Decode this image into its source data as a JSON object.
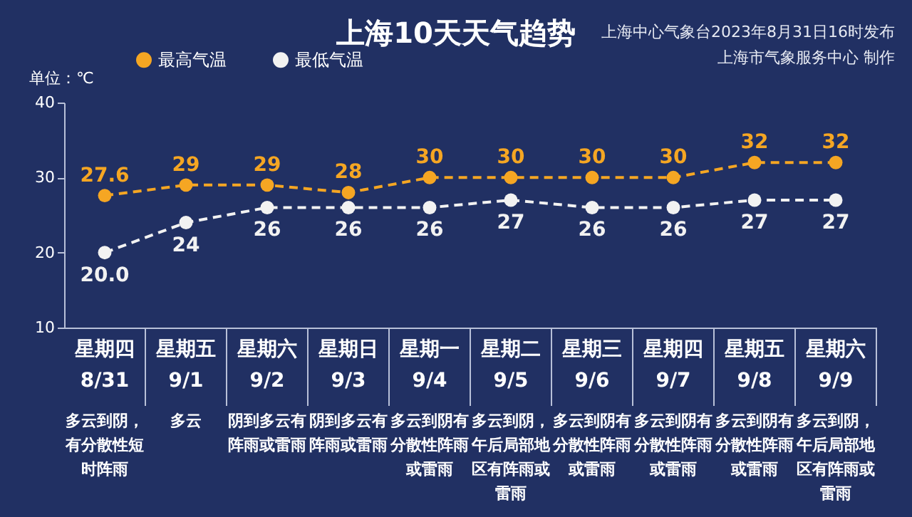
{
  "chart_data": {
    "type": "line",
    "title": "上海10天天气趋势",
    "ylabel": "单位：℃",
    "categories": [
      "星期四\n8/31",
      "星期五\n9/1",
      "星期六\n9/2",
      "星期日\n9/3",
      "星期一\n9/4",
      "星期二\n9/5",
      "星期三\n9/6",
      "星期四\n9/7",
      "星期五\n9/8",
      "星期六\n9/9"
    ],
    "series": [
      {
        "name": "最高气温",
        "color": "#f5a623",
        "values": [
          27.6,
          29,
          29,
          28,
          30,
          30,
          30,
          30,
          32,
          32
        ],
        "value_labels": [
          "27.6",
          "29",
          "29",
          "28",
          "30",
          "30",
          "30",
          "30",
          "32",
          "32"
        ]
      },
      {
        "name": "最低气温",
        "color": "#f2f2f2",
        "values": [
          20.0,
          24,
          26,
          26,
          26,
          27,
          26,
          26,
          27,
          27
        ],
        "value_labels": [
          "20.0",
          "24",
          "26",
          "26",
          "26",
          "27",
          "26",
          "26",
          "27",
          "27"
        ]
      }
    ],
    "ylim": [
      10,
      40
    ],
    "yticks": [
      10,
      20,
      30,
      40
    ],
    "marker": "circle",
    "line_style": "dashed",
    "legend": "top left",
    "annotations": [
      "上海中心气象台2023年8月31日16时发布",
      "上海市气象服务中心 制作",
      "多云到阴，有分散性短时阵雨",
      "多云",
      "阴到多云有阵雨或雷雨",
      "阴到多云有阵雨或雷雨",
      "多云到阴有分散性阵雨或雷雨",
      "多云到阴，午后局部地区有阵雨或雷雨",
      "多云到阴有分散性阵雨或雷雨",
      "多云到阴有分散性阵雨或雷雨",
      "多云到阴有分散性阵雨或雷雨",
      "多云到阴，午后局部地区有阵雨或雷雨"
    ]
  }
}
